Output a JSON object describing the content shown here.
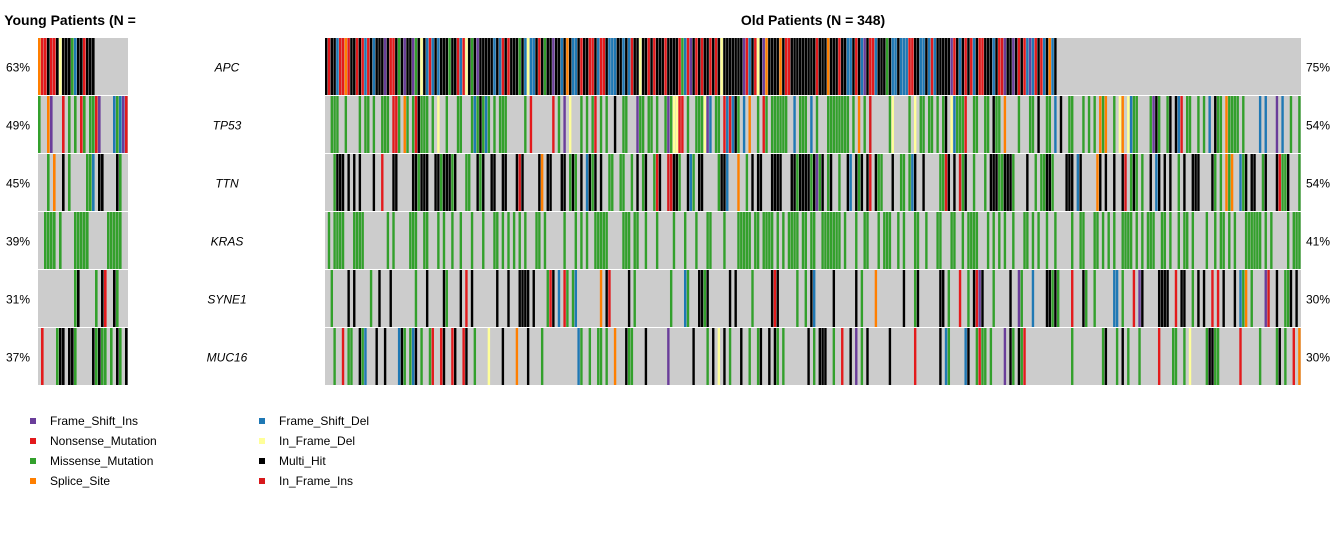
{
  "chart_data": {
    "type": "oncoplot",
    "panels": [
      {
        "name": "young",
        "title": "Young Patients (N =",
        "percents": [
          "63%",
          "49%",
          "45%",
          "39%",
          "31%",
          "37%"
        ]
      },
      {
        "name": "old",
        "title": "Old Patients (N = 348)",
        "percents": [
          "75%",
          "54%",
          "54%",
          "41%",
          "30%",
          "30%"
        ]
      }
    ],
    "genes": [
      "APC",
      "TP53",
      "TTN",
      "KRAS",
      "SYNE1",
      "MUC16"
    ],
    "legend": [
      {
        "label": "Frame_Shift_Ins",
        "color": "#6a3d9a"
      },
      {
        "label": "Nonsense_Mutation",
        "color": "#e31a1c"
      },
      {
        "label": "Missense_Mutation",
        "color": "#33a02c"
      },
      {
        "label": "Splice_Site",
        "color": "#ff7f00"
      },
      {
        "label": "Frame_Shift_Del",
        "color": "#1f78b4"
      },
      {
        "label": "In_Frame_Del",
        "color": "#ffff99"
      },
      {
        "label": "Multi_Hit",
        "color": "#000000"
      },
      {
        "label": "In_Frame_Ins",
        "color": "#d7191c"
      }
    ],
    "background_color": "#cccccc"
  }
}
